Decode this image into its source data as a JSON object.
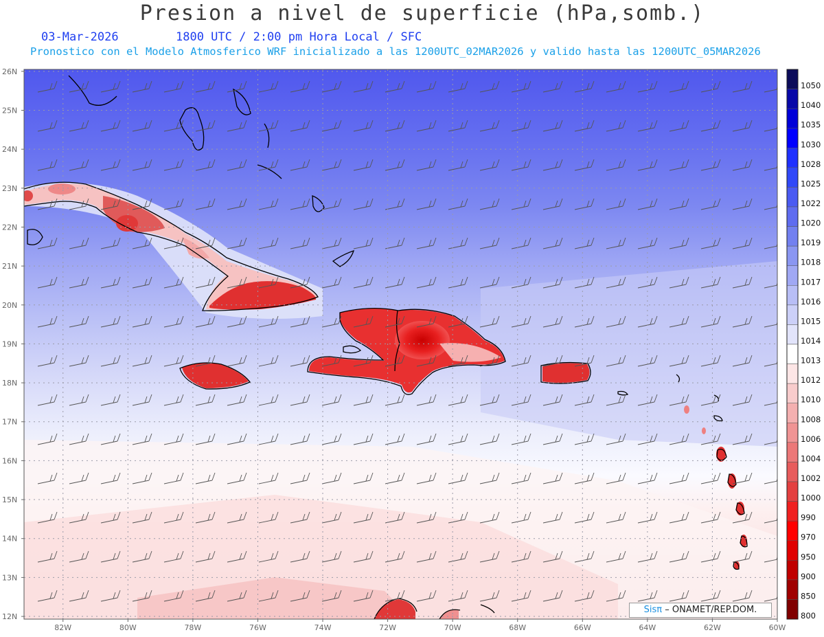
{
  "header": {
    "title": "Presion a nivel de superficie (hPa,somb.)",
    "date": "03-Mar-2026",
    "time_info": "1800 UTC / 2:00 pm Hora Local / SFC",
    "subtitle": "Pronostico con el Modelo Atmosferico WRF inicializado a las 1200UTC_02MAR2026 y valido hasta las  1200UTC_05MAR2026"
  },
  "map": {
    "lat_labels": [
      "26N",
      "25N",
      "24N",
      "23N",
      "22N",
      "21N",
      "20N",
      "19N",
      "18N",
      "17N",
      "16N",
      "15N",
      "14N",
      "13N",
      "12N"
    ],
    "lon_labels": [
      "82W",
      "80W",
      "78W",
      "76W",
      "74W",
      "72W",
      "70W",
      "68W",
      "66W",
      "64W",
      "62W",
      "60W"
    ],
    "lat_range": [
      12,
      26
    ],
    "lon_range": [
      -83.2,
      -60
    ],
    "grid": true
  },
  "colorbar": {
    "levels": [
      "1050",
      "1040",
      "1035",
      "1030",
      "1028",
      "1025",
      "1022",
      "1020",
      "1019",
      "1018",
      "1017",
      "1016",
      "1015",
      "1014",
      "1013",
      "1012",
      "1010",
      "1008",
      "1006",
      "1004",
      "1002",
      "1000",
      "990",
      "970",
      "950",
      "900",
      "850",
      "800"
    ],
    "colors": [
      "#0c0c5a",
      "#0808a8",
      "#0000d8",
      "#0000ff",
      "#1e30ff",
      "#3048f8",
      "#4a5af2",
      "#5f6cf0",
      "#7280f0",
      "#8a96f2",
      "#a0a8f4",
      "#b8bef6",
      "#ccd0f8",
      "#e2e4fb",
      "#ffffff",
      "#fde6e6",
      "#f8cccc",
      "#f4b0b0",
      "#f09494",
      "#ec7878",
      "#e85c5c",
      "#e44040",
      "#f02020",
      "#ff0000",
      "#e00000",
      "#c00000",
      "#a00000",
      "#800000"
    ]
  },
  "credit": {
    "brand": "Sisπ",
    "text": "– ONAMET/REP.DOM."
  }
}
